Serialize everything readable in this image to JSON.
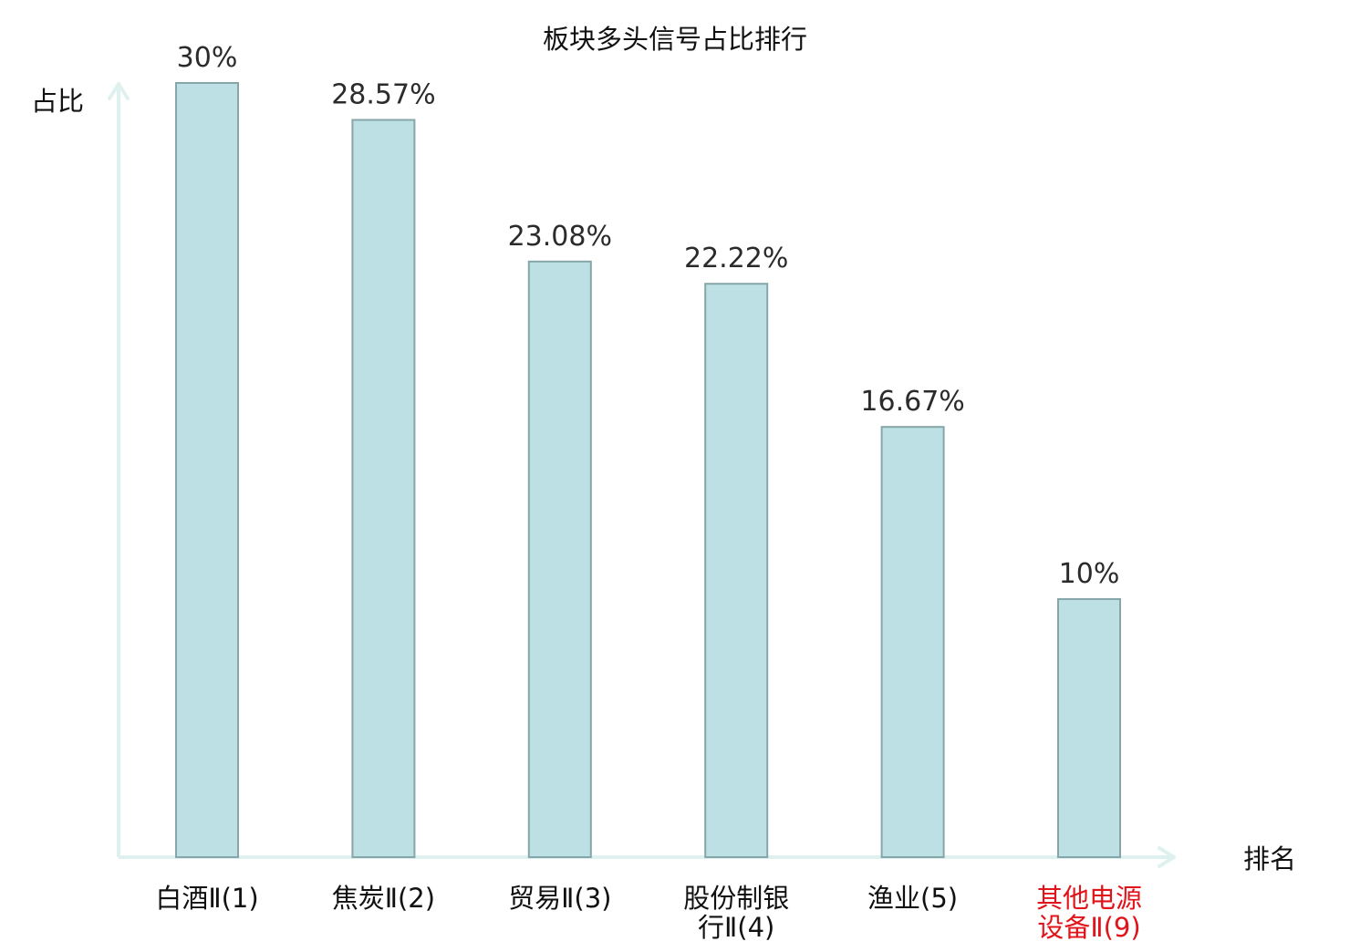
{
  "chart_data": {
    "type": "bar",
    "title": "板块多头信号占比排行",
    "ylabel": "占比",
    "xlabel": "排名",
    "categories": [
      [
        "白酒Ⅱ(1)"
      ],
      [
        "焦炭Ⅱ(2)"
      ],
      [
        "贸易Ⅱ(3)"
      ],
      [
        "股份制银",
        "行Ⅱ(4)"
      ],
      [
        "渔业(5)"
      ],
      [
        "其他电源",
        "设备Ⅱ(9)"
      ]
    ],
    "highlight": [
      false,
      false,
      false,
      false,
      false,
      true
    ],
    "values": [
      30,
      28.57,
      23.08,
      22.22,
      16.67,
      10
    ],
    "value_labels": [
      "30%",
      "28.57%",
      "23.08%",
      "22.22%",
      "16.67%",
      "10%"
    ],
    "ylim": [
      0,
      30
    ],
    "grid": false,
    "legend": "none"
  },
  "colors": {
    "bar_fill": "#bce0e3",
    "bar_stroke": "#86a6a9",
    "axis": "#dff1ee",
    "text": "#2b2b2b",
    "label": "#111111",
    "highlight": "#e0141a"
  }
}
